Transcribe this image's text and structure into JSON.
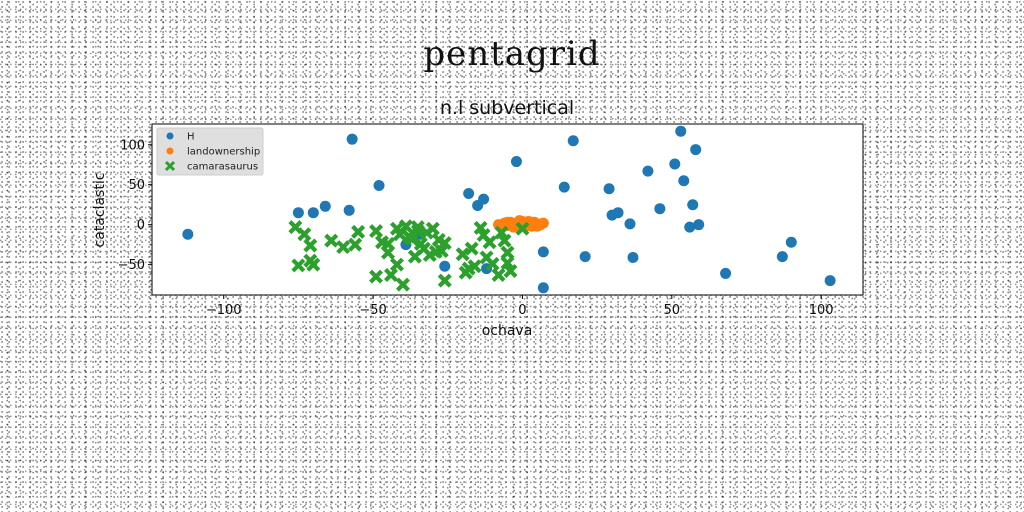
{
  "figure": {
    "suptitle": "pentagrid"
  },
  "chart_data": {
    "type": "scatter",
    "title": "n.l subvertical",
    "xlabel": "ochava",
    "ylabel": "cataclastic",
    "xlim": [
      -124,
      114
    ],
    "ylim": [
      -88,
      126
    ],
    "xticks": [
      -100,
      -50,
      0,
      50,
      100
    ],
    "yticks": [
      -50,
      0,
      50,
      100
    ],
    "xtick_labels": [
      "−100",
      "−50",
      "0",
      "50",
      "100"
    ],
    "ytick_labels": [
      "−50",
      "0",
      "50",
      "100"
    ],
    "grid": false,
    "legend_position": "upper-left",
    "series": [
      {
        "name": "H",
        "marker": "circle",
        "color": "#1f77b4",
        "x": [
          -112,
          -75,
          -70,
          -66,
          -58,
          -57,
          -48,
          -39,
          -34,
          -26,
          -18,
          -15,
          -13,
          -12,
          -2,
          7,
          7,
          14,
          17,
          21,
          29,
          30,
          32,
          36,
          37,
          42,
          46,
          51,
          53,
          54,
          56,
          57,
          59,
          58,
          68,
          87,
          90,
          103
        ],
        "y": [
          -12,
          15,
          15,
          23,
          18,
          107,
          49,
          -25,
          -12,
          -52,
          39,
          24,
          32,
          -55,
          79,
          -34,
          -79,
          47,
          105,
          -40,
          45,
          12,
          15,
          1,
          -41,
          67,
          20,
          76,
          117,
          55,
          -3,
          25,
          0,
          94,
          -61,
          -40,
          -22,
          -70
        ]
      },
      {
        "name": "landownership",
        "marker": "circle",
        "color": "#ff7f0e",
        "x": [
          -8,
          -6,
          -5,
          -4,
          -2,
          0,
          1,
          2,
          3,
          4,
          5,
          6,
          -7,
          -3,
          0,
          2,
          4,
          7,
          -1,
          1,
          3,
          -5,
          5,
          -2
        ],
        "y": [
          0,
          2,
          -1,
          3,
          1,
          4,
          0,
          2,
          -2,
          3,
          1,
          0,
          -1,
          -3,
          2,
          4,
          -1,
          2,
          5,
          -2,
          3,
          3,
          -2,
          -1
        ]
      },
      {
        "name": "camarasaurus",
        "marker": "x",
        "color": "#2ca02c",
        "x": [
          -76,
          -75,
          -73,
          -71,
          -70,
          -71,
          -64,
          -60,
          -56,
          -55,
          -49,
          -49,
          -47,
          -45,
          -45,
          -44,
          -42,
          -42,
          -41,
          -40,
          -39,
          -38,
          -37,
          -36,
          -35,
          -35,
          -34,
          -33,
          -32,
          -31,
          -30,
          -29,
          -28,
          -27,
          -26,
          -26,
          -20,
          -19,
          -18,
          -17,
          -16,
          -14,
          -13,
          -12,
          -11,
          -10,
          -8,
          -7,
          -6,
          -5,
          -5,
          -4,
          0
        ],
        "y": [
          -3,
          -51,
          -12,
          -26,
          -50,
          -45,
          -20,
          -28,
          -25,
          -9,
          -65,
          -8,
          -22,
          -24,
          -35,
          -63,
          -5,
          -50,
          -12,
          -75,
          -2,
          -15,
          -18,
          -40,
          -8,
          -3,
          -24,
          -30,
          -10,
          -38,
          -5,
          -34,
          -19,
          -33,
          -70,
          -23,
          -37,
          -60,
          -55,
          -30,
          -52,
          -4,
          -13,
          -41,
          -22,
          -49,
          -63,
          -10,
          -20,
          -35,
          -48,
          -58,
          -5
        ]
      }
    ]
  }
}
